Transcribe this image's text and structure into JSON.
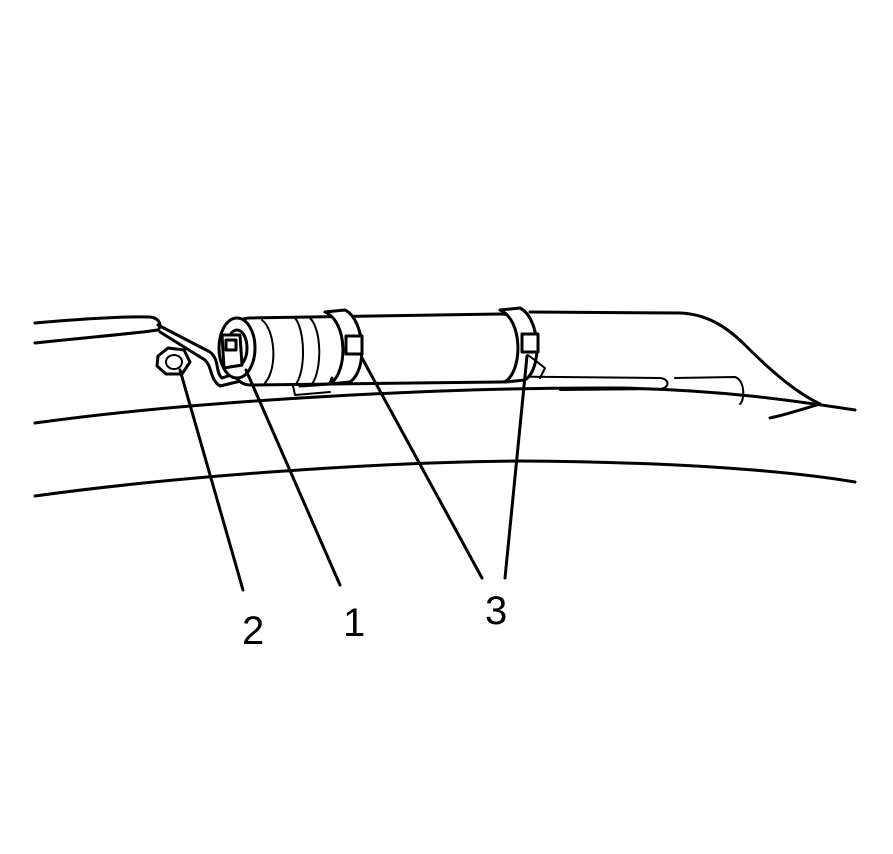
{
  "callouts": {
    "c1": "1",
    "c2": "2",
    "c3": "3"
  },
  "colors": {
    "line": "#000000",
    "background": "#ffffff"
  }
}
